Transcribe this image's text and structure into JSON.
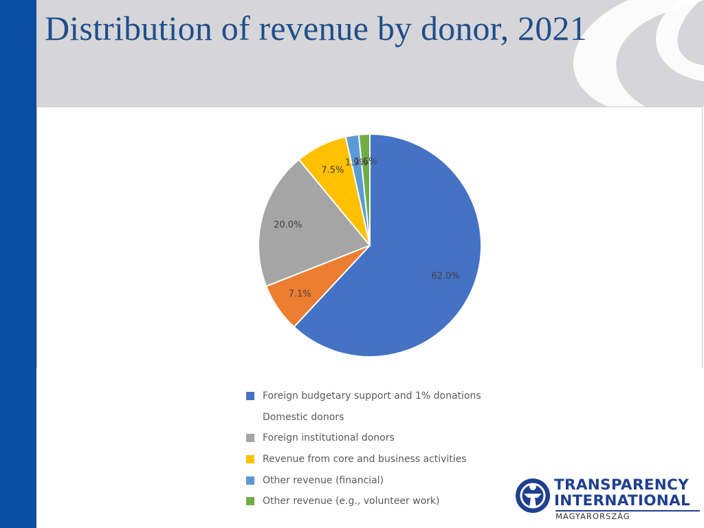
{
  "slide": {
    "title": "Distribution of revenue by donor, 2021"
  },
  "chart_data": {
    "type": "pie",
    "title": "",
    "start_angle_deg": 0,
    "direction": "clockwise",
    "legend_position": "bottom",
    "categories": [
      "Foreign budgetary support and 1% donations",
      "Domestic donors",
      "Foreign institutional donors",
      "Revenue from core and business activities",
      "Other revenue (financial)",
      "Other revenue (e.g., volunteer work)"
    ],
    "values": [
      62.0,
      7.1,
      20.0,
      7.5,
      1.9,
      1.6
    ],
    "data_labels": [
      "62.0%",
      "7.1%",
      "20.0%",
      "7.5%",
      "1.9%",
      "1.6%"
    ],
    "colors": [
      "#4472c4",
      "#ed7d31",
      "#a5a5a5",
      "#ffc000",
      "#5b9bd5",
      "#70ad47"
    ],
    "legend_swatch_visible": [
      true,
      false,
      true,
      true,
      true,
      true
    ]
  },
  "logo": {
    "line1": "TRANSPARENCY",
    "line2": "INTERNATIONAL",
    "line3": "MAGYARORSZÁG",
    "color": "#1f3f8f"
  }
}
